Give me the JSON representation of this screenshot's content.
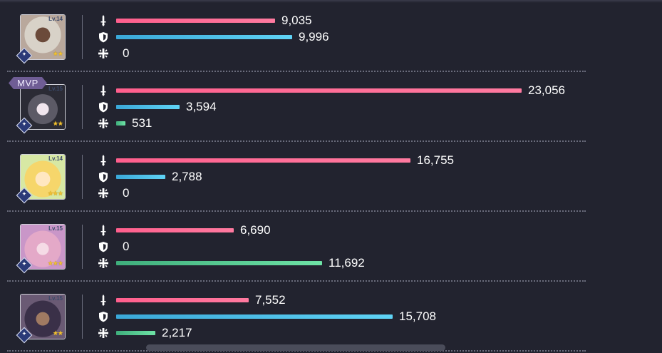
{
  "max_value": 23056,
  "colors": {
    "damage": "#ff6b94",
    "tanking": "#4cc0e8",
    "healing": "#5ccf93",
    "background": "#22232f",
    "mvp": "#6f5d95"
  },
  "icons": {
    "damage": "sword-icon",
    "tanking": "shield-icon",
    "healing": "heal-cross-icon"
  },
  "characters": [
    {
      "level": "Lv.14",
      "stars": "★★",
      "mvp": "",
      "class_icon": "tank-class-icon",
      "damage": 9035,
      "damage_label": "9,035",
      "tanking": 9996,
      "tanking_label": "9,996",
      "healing": 0,
      "healing_label": "0"
    },
    {
      "level": "Lv.15",
      "stars": "★★",
      "mvp": "MVP",
      "class_icon": "crossed-swords-class-icon",
      "damage": 23056,
      "damage_label": "23,056",
      "tanking": 3594,
      "tanking_label": "3,594",
      "healing": 531,
      "healing_label": "531"
    },
    {
      "level": "Lv.14",
      "stars": "★★★",
      "mvp": "",
      "class_icon": "moon-class-icon",
      "damage": 16755,
      "damage_label": "16,755",
      "tanking": 2788,
      "tanking_label": "2,788",
      "healing": 0,
      "healing_label": "0"
    },
    {
      "level": "Lv.15",
      "stars": "★★★",
      "mvp": "",
      "class_icon": "support-class-icon",
      "damage": 6690,
      "damage_label": "6,690",
      "tanking": 0,
      "tanking_label": "0",
      "healing": 11692,
      "healing_label": "11,692"
    },
    {
      "level": "Lv.15",
      "stars": "★★",
      "mvp": "",
      "class_icon": "tank-class-icon",
      "damage": 7552,
      "damage_label": "7,552",
      "tanking": 15708,
      "tanking_label": "15,708",
      "healing": 2217,
      "healing_label": "2,217"
    }
  ]
}
